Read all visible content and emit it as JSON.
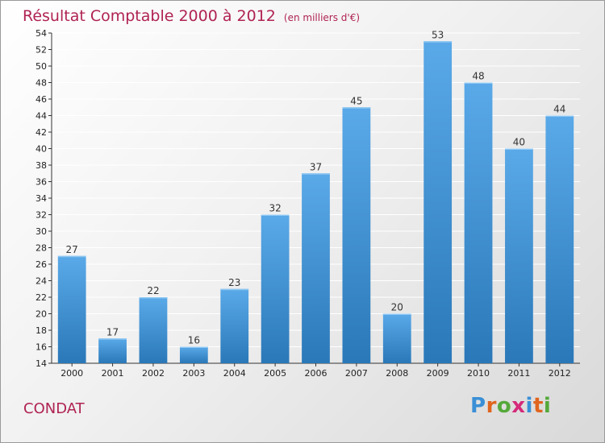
{
  "header": {
    "title": "Résultat Comptable 2000 à 2012",
    "subtitle": "(en milliers d'€)"
  },
  "footer": {
    "commune": "CONDAT",
    "logo_letters": [
      "P",
      "r",
      "o",
      "x",
      "i",
      "t",
      "i"
    ],
    "logo_colors": [
      "#3a8fd6",
      "#e0651e",
      "#55a93b",
      "#d52a7a",
      "#3a8fd6",
      "#e0651e",
      "#55a93b"
    ]
  },
  "colors": {
    "title": "#b02352",
    "bar_light": "#5aa9e8",
    "bar_dark": "#2a78b8"
  },
  "chart_data": {
    "type": "bar",
    "title": "Résultat Comptable 2000 à 2012",
    "subtitle": "(en milliers d'€)",
    "categories": [
      "2000",
      "2001",
      "2002",
      "2003",
      "2004",
      "2005",
      "2006",
      "2007",
      "2008",
      "2009",
      "2010",
      "2011",
      "2012"
    ],
    "values": [
      27,
      17,
      22,
      16,
      23,
      32,
      37,
      45,
      20,
      53,
      48,
      40,
      44
    ],
    "ylim": [
      14,
      54
    ],
    "yticks": [
      14,
      16,
      18,
      20,
      22,
      24,
      26,
      28,
      30,
      32,
      34,
      36,
      38,
      40,
      42,
      44,
      46,
      48,
      50,
      52,
      54
    ],
    "grid": true,
    "data_labels": true,
    "xlabel": "",
    "ylabel": ""
  }
}
